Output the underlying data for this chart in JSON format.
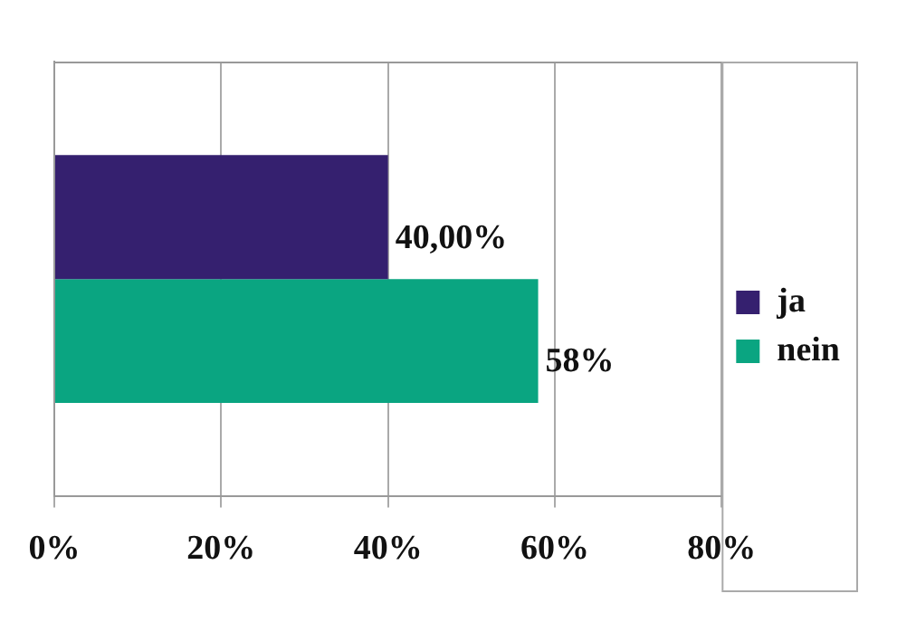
{
  "chart_data": {
    "type": "bar",
    "orientation": "horizontal",
    "categories": [
      null
    ],
    "series": [
      {
        "name": "ja",
        "color": "#35206f",
        "values": [
          40
        ],
        "value_labels": [
          "40,00%"
        ]
      },
      {
        "name": "nein",
        "color": "#0aa581",
        "values": [
          58
        ],
        "value_labels": [
          "58%"
        ]
      }
    ],
    "xlim": [
      0,
      80
    ],
    "xticks": [
      {
        "value": 0,
        "label": "0%"
      },
      {
        "value": 20,
        "label": "20%"
      },
      {
        "value": 40,
        "label": "40%"
      },
      {
        "value": 60,
        "label": "60%"
      },
      {
        "value": 80,
        "label": "80%"
      }
    ],
    "grid": "x",
    "legend": "right",
    "tick_labels": "x"
  }
}
